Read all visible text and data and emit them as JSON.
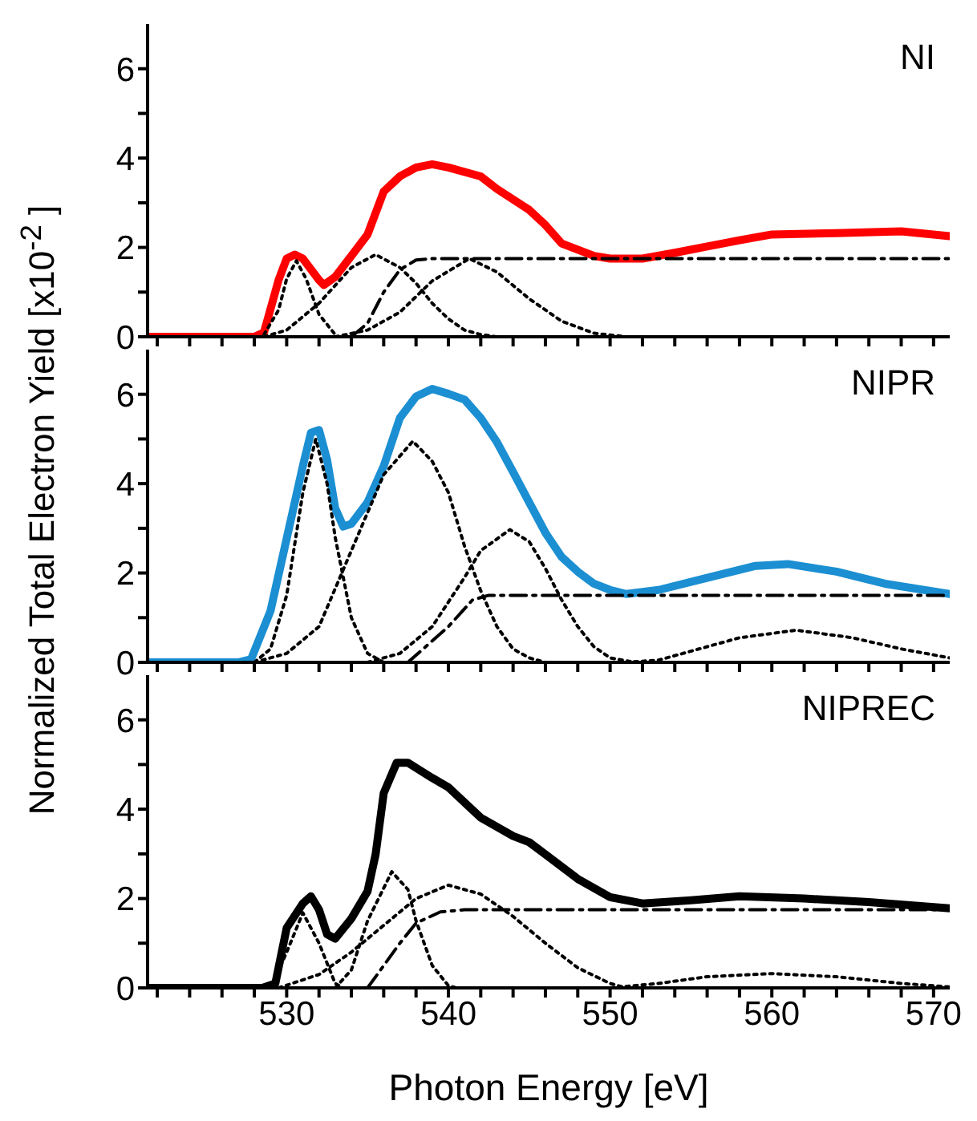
{
  "chart_data": [
    {
      "type": "line",
      "annotations": [
        "NI"
      ],
      "xlim": [
        521.4,
        571
      ],
      "xticks": [
        {
          "value": 522,
          "label": null
        },
        {
          "value": 524,
          "label": null
        },
        {
          "value": 526,
          "label": null
        },
        {
          "value": 528,
          "label": null
        },
        530,
        {
          "value": 532,
          "label": null
        },
        {
          "value": 534,
          "label": null
        },
        {
          "value": 536,
          "label": null
        },
        {
          "value": 538,
          "label": null
        },
        540,
        {
          "value": 542,
          "label": null
        },
        {
          "value": 544,
          "label": null
        },
        {
          "value": 546,
          "label": null
        },
        {
          "value": 548,
          "label": null
        },
        550,
        {
          "value": 552,
          "label": null
        },
        {
          "value": 554,
          "label": null
        },
        {
          "value": 556,
          "label": null
        },
        {
          "value": 558,
          "label": null
        },
        560,
        {
          "value": 562,
          "label": null
        },
        {
          "value": 564,
          "label": null
        },
        {
          "value": 566,
          "label": null
        },
        {
          "value": 568,
          "label": null
        },
        570
      ],
      "ylim": [
        0,
        7
      ],
      "yticks": [
        0,
        {
          "value": 1,
          "label": null
        },
        2,
        {
          "value": 3,
          "label": null
        },
        4,
        {
          "value": 5,
          "label": null
        },
        6
      ],
      "tick_labels": "y",
      "grid": false,
      "legend": false,
      "marker": "none",
      "series": [
        {
          "color": "#ff0000",
          "line_style": "solid",
          "x": [
            521.4,
            528,
            528.6,
            529.5,
            530,
            530.5,
            531,
            532,
            532.3,
            533,
            534,
            535,
            536,
            537,
            538,
            539,
            540,
            542,
            543,
            545,
            546,
            547,
            549,
            550,
            552,
            554,
            556,
            558,
            560,
            564,
            568,
            571
          ],
          "values": [
            0,
            0,
            0.1,
            1.27,
            1.75,
            1.84,
            1.75,
            1.27,
            1.16,
            1.34,
            1.81,
            2.29,
            3.25,
            3.59,
            3.79,
            3.86,
            3.79,
            3.59,
            3.31,
            2.84,
            2.5,
            2.09,
            1.81,
            1.75,
            1.75,
            1.88,
            2.02,
            2.16,
            2.29,
            2.32,
            2.36,
            2.25
          ]
        },
        {
          "color": "#000000",
          "line_style": "dotted",
          "x": [
            528.6,
            529.5,
            530,
            530.6,
            531.2,
            532,
            533
          ],
          "values": [
            0.05,
            0.6,
            1.3,
            1.7,
            1.3,
            0.5,
            0.05
          ]
        },
        {
          "color": "#000000",
          "line_style": "dotted",
          "x": [
            528.6,
            530,
            532,
            533,
            534,
            535.5,
            537,
            538,
            539,
            540,
            541,
            542,
            543
          ],
          "values": [
            0,
            0.15,
            0.75,
            1.15,
            1.55,
            1.84,
            1.55,
            1.2,
            0.75,
            0.4,
            0.15,
            0.05,
            0
          ]
        },
        {
          "color": "#000000",
          "line_style": "dotted",
          "x": [
            533,
            535,
            537,
            539,
            541.3,
            543,
            545,
            547,
            549,
            551
          ],
          "values": [
            0,
            0.15,
            0.55,
            1.25,
            1.75,
            1.45,
            0.85,
            0.35,
            0.08,
            0
          ]
        },
        {
          "color": "#000000",
          "line_style": "dashed",
          "x": [
            534,
            535,
            536,
            537,
            538,
            539,
            571
          ],
          "values": [
            0,
            0.3,
            1.0,
            1.5,
            1.72,
            1.75,
            1.75
          ]
        }
      ]
    },
    {
      "type": "line",
      "ylabel": "Normalized Total Electron Yield [x10$^{-2}$ ]",
      "annotations": [
        "NIPR"
      ],
      "xlim": [
        521.4,
        571
      ],
      "xticks": [
        {
          "value": 522,
          "label": null
        },
        {
          "value": 524,
          "label": null
        },
        {
          "value": 526,
          "label": null
        },
        {
          "value": 528,
          "label": null
        },
        530,
        {
          "value": 532,
          "label": null
        },
        {
          "value": 534,
          "label": null
        },
        {
          "value": 536,
          "label": null
        },
        {
          "value": 538,
          "label": null
        },
        540,
        {
          "value": 542,
          "label": null
        },
        {
          "value": 544,
          "label": null
        },
        {
          "value": 546,
          "label": null
        },
        {
          "value": 548,
          "label": null
        },
        550,
        {
          "value": 552,
          "label": null
        },
        {
          "value": 554,
          "label": null
        },
        {
          "value": 556,
          "label": null
        },
        {
          "value": 558,
          "label": null
        },
        560,
        {
          "value": 562,
          "label": null
        },
        {
          "value": 564,
          "label": null
        },
        {
          "value": 566,
          "label": null
        },
        {
          "value": 568,
          "label": null
        },
        570
      ],
      "ylim": [
        0,
        7
      ],
      "yticks": [
        0,
        {
          "value": 1,
          "label": null
        },
        2,
        {
          "value": 3,
          "label": null
        },
        4,
        {
          "value": 5,
          "label": null
        },
        6
      ],
      "tick_labels": "y",
      "grid": false,
      "legend": false,
      "marker": "none",
      "series": [
        {
          "color": "#1b8fd2",
          "line_style": "solid",
          "x": [
            521.4,
            527,
            527.8,
            529,
            530,
            531,
            531.5,
            532,
            532.5,
            533,
            533.5,
            534,
            535,
            536,
            537,
            538,
            539,
            540,
            541,
            542,
            543,
            544,
            545,
            546,
            547,
            548,
            549,
            550,
            551,
            553,
            556,
            559,
            561,
            564,
            567,
            571
          ],
          "values": [
            0,
            0,
            0.07,
            1.15,
            2.77,
            4.39,
            5.14,
            5.2,
            4.53,
            3.45,
            3.04,
            3.1,
            3.58,
            4.39,
            5.47,
            5.95,
            6.12,
            6.01,
            5.88,
            5.47,
            4.93,
            4.26,
            3.58,
            2.9,
            2.36,
            2.03,
            1.76,
            1.62,
            1.53,
            1.62,
            1.89,
            2.16,
            2.2,
            2.03,
            1.76,
            1.53
          ]
        },
        {
          "color": "#000000",
          "line_style": "dotted",
          "x": [
            528,
            529,
            530,
            531,
            531.8,
            532.5,
            533,
            534,
            535,
            536
          ],
          "values": [
            0,
            0.3,
            1.5,
            3.8,
            5.0,
            4.0,
            2.8,
            1.0,
            0.2,
            0
          ]
        },
        {
          "color": "#000000",
          "line_style": "dotted",
          "x": [
            528,
            530,
            532,
            534,
            536,
            537.8,
            539,
            540,
            541,
            542,
            543,
            544,
            545,
            546
          ],
          "values": [
            0,
            0.2,
            0.8,
            2.5,
            4.2,
            4.95,
            4.5,
            3.8,
            2.6,
            1.6,
            0.8,
            0.3,
            0.1,
            0
          ]
        },
        {
          "color": "#000000",
          "line_style": "dotted",
          "x": [
            535,
            537,
            539,
            541,
            542,
            543.8,
            545,
            546,
            547,
            548,
            549,
            550,
            551.5
          ],
          "values": [
            0,
            0.2,
            0.8,
            1.9,
            2.5,
            2.97,
            2.7,
            2.1,
            1.4,
            0.8,
            0.35,
            0.1,
            0
          ]
        },
        {
          "color": "#000000",
          "line_style": "dotted",
          "x": [
            551,
            553,
            555,
            558,
            561.5,
            565,
            568,
            571
          ],
          "values": [
            0,
            0.05,
            0.25,
            0.55,
            0.72,
            0.55,
            0.3,
            0.1
          ]
        },
        {
          "color": "#000000",
          "line_style": "dashed",
          "x": [
            537.5,
            540,
            541.5,
            542.5,
            571
          ],
          "values": [
            0,
            0.8,
            1.4,
            1.5,
            1.5
          ]
        }
      ]
    },
    {
      "type": "line",
      "xlabel": "Photon Energy [eV]",
      "annotations": [
        "NIPREC"
      ],
      "xlim": [
        521.4,
        571
      ],
      "xticks": [
        {
          "value": 522,
          "label": null
        },
        {
          "value": 524,
          "label": null
        },
        {
          "value": 526,
          "label": null
        },
        {
          "value": 528,
          "label": null
        },
        530,
        {
          "value": 532,
          "label": null
        },
        {
          "value": 534,
          "label": null
        },
        {
          "value": 536,
          "label": null
        },
        {
          "value": 538,
          "label": null
        },
        540,
        {
          "value": 542,
          "label": null
        },
        {
          "value": 544,
          "label": null
        },
        {
          "value": 546,
          "label": null
        },
        {
          "value": 548,
          "label": null
        },
        550,
        {
          "value": 552,
          "label": null
        },
        {
          "value": 554,
          "label": null
        },
        {
          "value": 556,
          "label": null
        },
        {
          "value": 558,
          "label": null
        },
        560,
        {
          "value": 562,
          "label": null
        },
        {
          "value": 564,
          "label": null
        },
        {
          "value": 566,
          "label": null
        },
        {
          "value": 568,
          "label": null
        },
        570
      ],
      "ylim": [
        0,
        7
      ],
      "yticks": [
        0,
        {
          "value": 1,
          "label": null
        },
        2,
        {
          "value": 3,
          "label": null
        },
        4,
        {
          "value": 5,
          "label": null
        },
        6
      ],
      "grid": false,
      "legend": false,
      "marker": "none",
      "series": [
        {
          "color": "#000000",
          "line_style": "solid",
          "x": [
            521.4,
            528.5,
            529.3,
            530,
            531,
            531.5,
            532,
            532.5,
            533,
            534,
            535,
            535.5,
            536,
            536.8,
            537.5,
            539,
            540,
            542,
            544,
            545,
            546,
            548,
            550,
            552,
            555,
            558,
            562,
            566,
            571
          ],
          "values": [
            0,
            0,
            0.1,
            1.34,
            1.89,
            2.05,
            1.75,
            1.2,
            1.1,
            1.55,
            2.16,
            2.99,
            4.36,
            5.04,
            5.04,
            4.7,
            4.49,
            3.81,
            3.4,
            3.26,
            2.99,
            2.44,
            2.03,
            1.89,
            1.96,
            2.05,
            2.0,
            1.92,
            1.78
          ]
        },
        {
          "color": "#000000",
          "line_style": "dotted",
          "x": [
            529,
            530,
            531,
            532,
            533,
            533.5
          ],
          "values": [
            0,
            0.8,
            1.68,
            1.0,
            0.1,
            0
          ]
        },
        {
          "color": "#000000",
          "line_style": "dotted",
          "x": [
            533,
            534,
            535,
            536.5,
            537.5,
            538,
            539,
            540,
            540.5
          ],
          "values": [
            0,
            0.4,
            1.5,
            2.6,
            2.2,
            1.5,
            0.5,
            0.05,
            0
          ]
        },
        {
          "color": "#000000",
          "line_style": "dotted",
          "x": [
            529.5,
            532,
            534,
            536,
            538,
            540,
            542,
            544,
            546,
            548,
            550,
            551
          ],
          "values": [
            0,
            0.3,
            0.8,
            1.4,
            2.0,
            2.3,
            2.1,
            1.6,
            1.0,
            0.45,
            0.1,
            0
          ]
        },
        {
          "color": "#000000",
          "line_style": "dotted",
          "x": [
            550,
            553,
            556,
            560,
            564,
            568,
            571
          ],
          "values": [
            0,
            0.1,
            0.25,
            0.32,
            0.25,
            0.1,
            0.02
          ]
        },
        {
          "color": "#000000",
          "line_style": "dashed",
          "x": [
            535,
            536,
            537,
            538,
            539.5,
            541,
            571
          ],
          "values": [
            0,
            0.5,
            1.0,
            1.45,
            1.7,
            1.75,
            1.75
          ]
        }
      ]
    }
  ]
}
